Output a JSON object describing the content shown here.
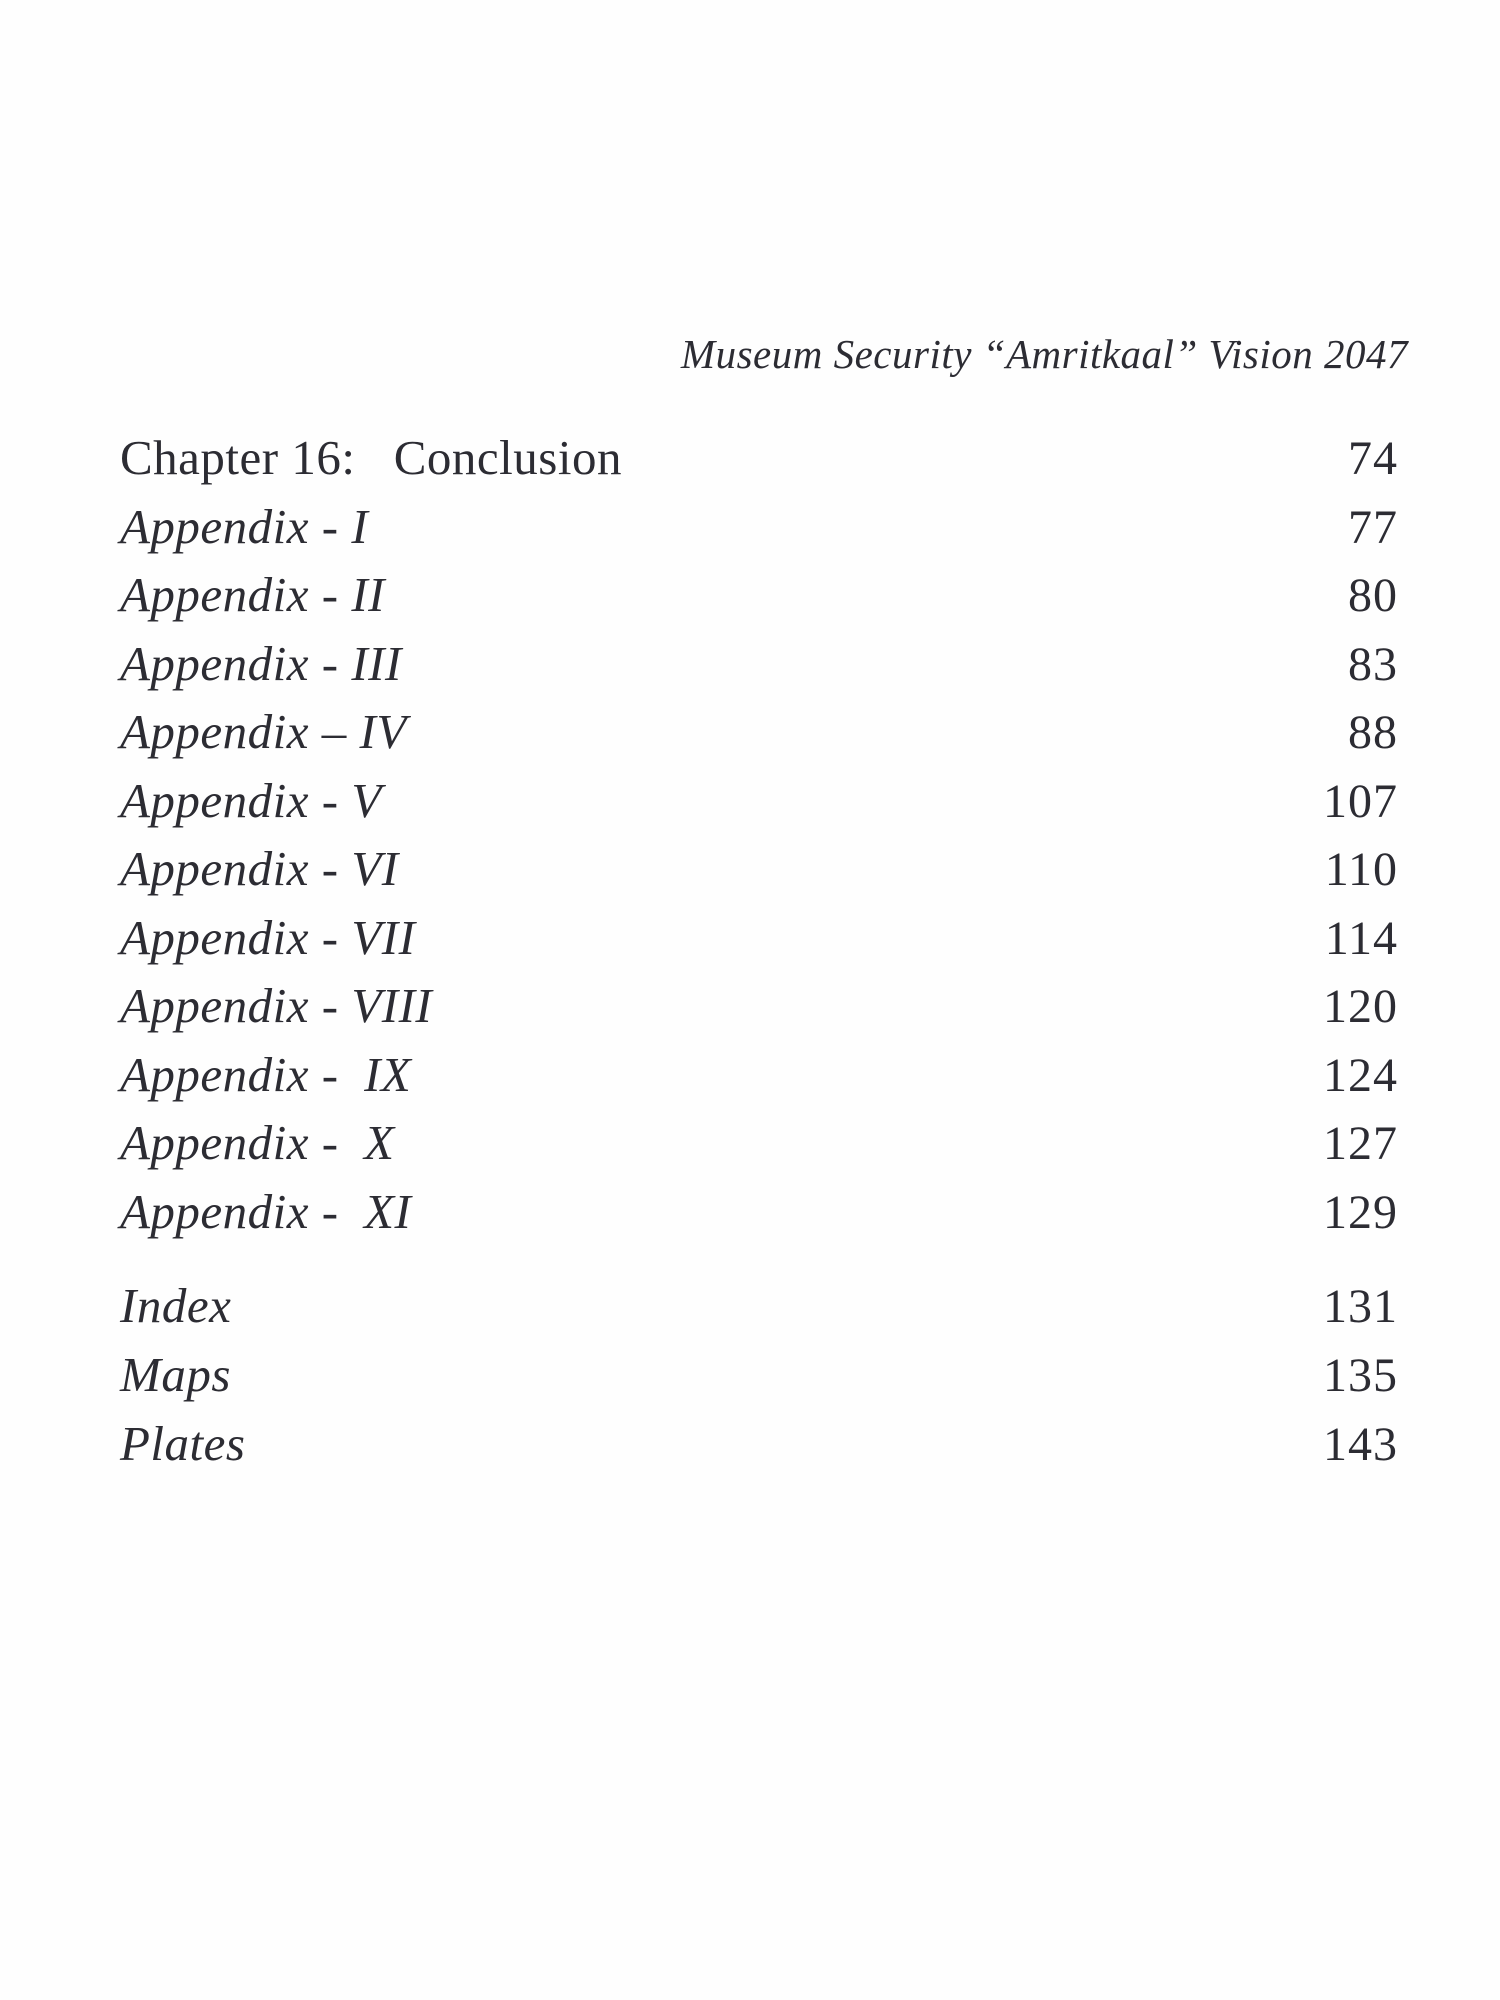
{
  "page": {
    "running_header": "Museum Security “Amritkaal” Vision 2047"
  },
  "toc": {
    "main_entries": [
      {
        "label": "Chapter 16:   Conclusion",
        "page": "74"
      },
      {
        "label": "Appendix - I",
        "page": "77"
      },
      {
        "label": "Appendix - II",
        "page": "80"
      },
      {
        "label": "Appendix - III",
        "page": "83"
      },
      {
        "label": "Appendix – IV",
        "page": "88"
      },
      {
        "label": "Appendix - V",
        "page": "107"
      },
      {
        "label": "Appendix - VI",
        "page": "110"
      },
      {
        "label": "Appendix - VII",
        "page": "114"
      },
      {
        "label": "Appendix - VIII",
        "page": "120"
      },
      {
        "label": "Appendix -  IX",
        "page": "124"
      },
      {
        "label": "Appendix -  X",
        "page": "127"
      },
      {
        "label": "Appendix -  XI",
        "page": "129"
      }
    ],
    "back_matter_entries": [
      {
        "label": "Index",
        "page": "131"
      },
      {
        "label": "Maps",
        "page": "135"
      },
      {
        "label": "Plates",
        "page": "143"
      }
    ]
  }
}
